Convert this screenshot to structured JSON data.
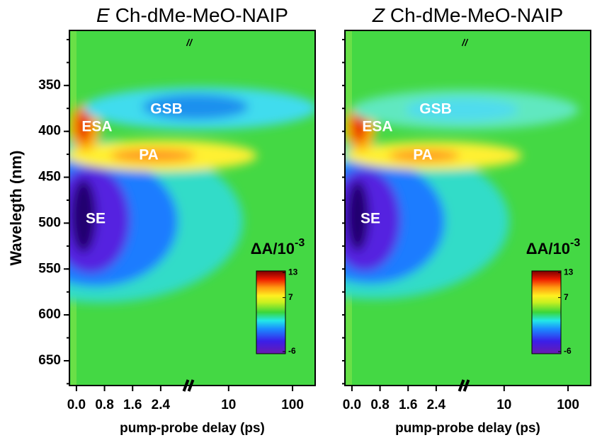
{
  "chart_data": [
    {
      "type": "heatmap",
      "title_prefix": "E",
      "title": "Ch-dMe-MeO-NAIP",
      "xlabel": "pump-probe delay (ps)",
      "ylabel": "Wavelegth (nm)",
      "x_segments": [
        {
          "scale": "linear",
          "lim": [
            -0.2,
            3.3
          ],
          "ticks": [
            {
              "value": 0,
              "label": "0.0"
            },
            0.8,
            1.6,
            2.4
          ]
        },
        {
          "scale": "log",
          "lim": [
            2.7,
            226
          ],
          "ticks": [
            10,
            100
          ]
        }
      ],
      "ylim": [
        677,
        290
      ],
      "yticks": [
        350,
        400,
        450,
        500,
        550,
        600,
        650
      ],
      "annotations": [
        "GSB",
        "ESA",
        "PA",
        "SE"
      ],
      "colorbar": {
        "label": "ΔA/10",
        "label_sup": "-3",
        "lim": [
          -6.5,
          13.4
        ],
        "ticks": [
          13,
          7,
          -6
        ]
      }
    },
    {
      "type": "heatmap",
      "title_prefix": "Z",
      "title": "Ch-dMe-MeO-NAIP",
      "xlabel": "pump-probe delay (ps)",
      "x_segments": [
        {
          "scale": "linear",
          "lim": [
            -0.2,
            3.3
          ],
          "ticks": [
            {
              "value": 0,
              "label": "0.0"
            },
            0.8,
            1.6,
            2.4
          ]
        },
        {
          "scale": "log",
          "lim": [
            2.7,
            226
          ],
          "ticks": [
            10,
            100
          ]
        }
      ],
      "ylim": [
        677,
        290
      ],
      "annotations": [
        "GSB",
        "ESA",
        "PA",
        "SE"
      ],
      "colorbar": {
        "label": "ΔA/10",
        "label_sup": "-3",
        "lim": [
          -6.5,
          13.4
        ],
        "ticks": [
          13,
          7,
          -6
        ]
      }
    }
  ]
}
